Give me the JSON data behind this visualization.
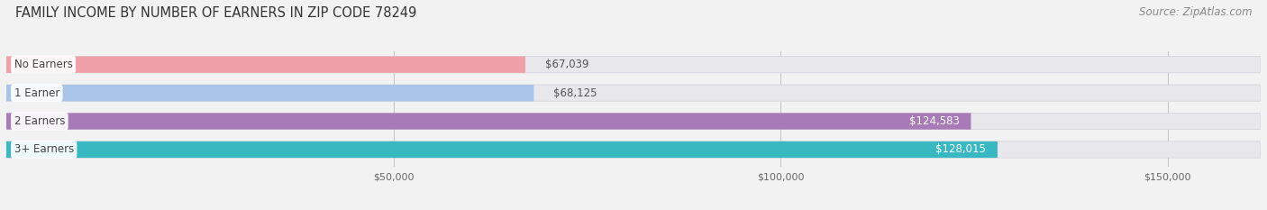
{
  "title": "FAMILY INCOME BY NUMBER OF EARNERS IN ZIP CODE 78249",
  "source": "Source: ZipAtlas.com",
  "categories": [
    "No Earners",
    "1 Earner",
    "2 Earners",
    "3+ Earners"
  ],
  "values": [
    67039,
    68125,
    124583,
    128015
  ],
  "bar_colors": [
    "#f0a0a8",
    "#a8c4e8",
    "#a87bb8",
    "#38b8c0"
  ],
  "label_colors": [
    "#555555",
    "#555555",
    "#ffffff",
    "#ffffff"
  ],
  "bar_height": 0.58,
  "xlim": [
    0,
    162000
  ],
  "xticks": [
    50000,
    100000,
    150000
  ],
  "xtick_labels": [
    "$50,000",
    "$100,000",
    "$150,000"
  ],
  "background_color": "#f2f2f2",
  "track_color": "#e8e8ec",
  "title_fontsize": 10.5,
  "source_fontsize": 8.5,
  "label_fontsize": 8.5,
  "value_fontsize": 8.5
}
